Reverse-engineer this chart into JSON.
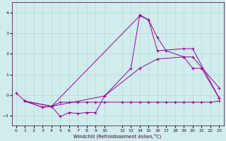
{
  "background_color": "#d0ecec",
  "grid_color": "#b8dada",
  "line_color": "#990099",
  "xlabel": "Windchill (Refroidissement éolien,°C)",
  "xlim": [
    -0.5,
    23.5
  ],
  "ylim": [
    -1.5,
    4.5
  ],
  "yticks": [
    -1,
    0,
    1,
    2,
    3,
    4
  ],
  "xtick_labels": [
    "0",
    "1",
    "2",
    "3",
    "4",
    "5",
    "6",
    "7",
    "8",
    "9",
    "10",
    "12",
    "13",
    "14",
    "15",
    "16",
    "17",
    "18",
    "19",
    "20",
    "21",
    "22",
    "23"
  ],
  "xtick_pos": [
    0,
    1,
    2,
    3,
    4,
    5,
    6,
    7,
    8,
    9,
    10,
    12,
    13,
    14,
    15,
    16,
    17,
    18,
    19,
    20,
    21,
    22,
    23
  ],
  "series": [
    {
      "x": [
        0,
        1,
        3,
        4,
        5,
        6,
        7,
        8,
        9,
        10,
        13,
        14,
        15,
        16,
        17,
        19,
        20,
        21,
        23
      ],
      "y": [
        0.1,
        -0.3,
        -0.6,
        -0.55,
        -1.05,
        -0.85,
        -0.9,
        -0.85,
        -0.85,
        -0.05,
        1.3,
        3.9,
        3.65,
        2.8,
        2.15,
        1.85,
        1.3,
        1.3,
        -0.15
      ]
    },
    {
      "x": [
        1,
        3,
        4,
        14,
        15,
        16,
        19,
        20,
        23
      ],
      "y": [
        -0.3,
        -0.6,
        -0.55,
        3.85,
        3.65,
        2.15,
        2.25,
        2.25,
        -0.15
      ]
    },
    {
      "x": [
        1,
        4,
        10,
        14,
        16,
        19,
        20,
        23
      ],
      "y": [
        -0.3,
        -0.55,
        -0.05,
        1.3,
        1.75,
        1.85,
        1.85,
        0.35
      ]
    },
    {
      "x": [
        1,
        4,
        5,
        6,
        7,
        8,
        9,
        10,
        12,
        13,
        14,
        15,
        16,
        17,
        18,
        19,
        20,
        21,
        22,
        23
      ],
      "y": [
        -0.3,
        -0.55,
        -0.35,
        -0.35,
        -0.35,
        -0.35,
        -0.35,
        -0.35,
        -0.35,
        -0.35,
        -0.35,
        -0.35,
        -0.35,
        -0.35,
        -0.35,
        -0.35,
        -0.35,
        -0.35,
        -0.35,
        -0.3
      ]
    }
  ]
}
